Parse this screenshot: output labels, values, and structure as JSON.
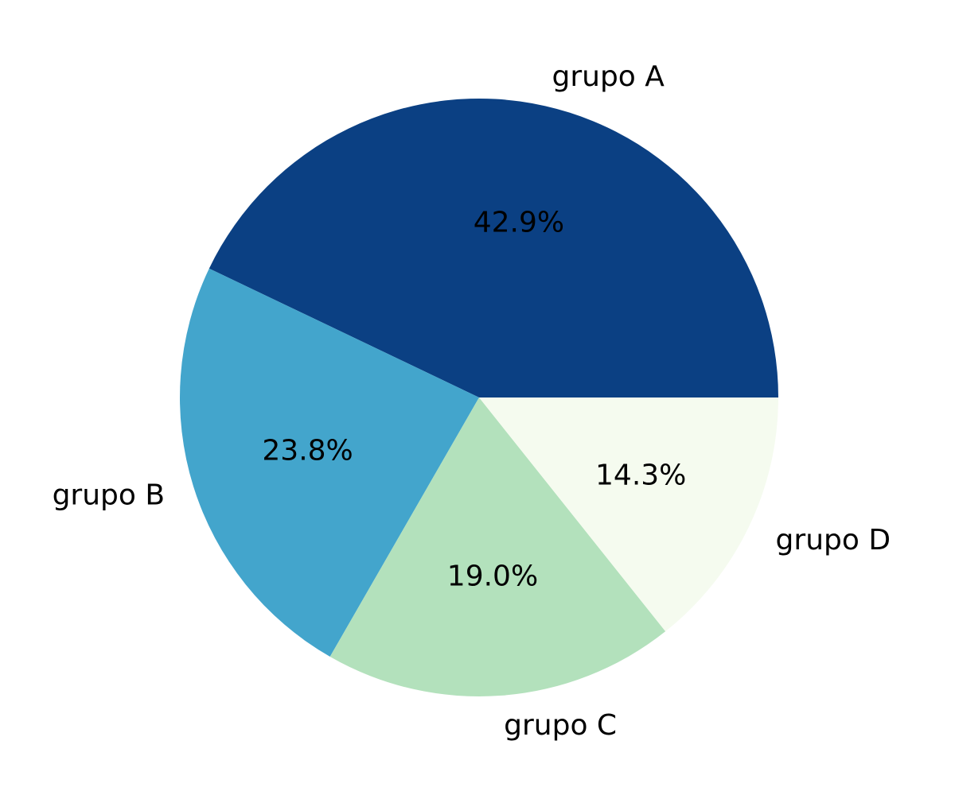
{
  "chart_data": {
    "type": "pie",
    "categories": [
      "grupo A",
      "grupo B",
      "grupo C",
      "grupo D"
    ],
    "values": [
      42.9,
      23.8,
      19.0,
      14.3
    ],
    "value_labels": [
      "42.9%",
      "23.8%",
      "19.0%",
      "14.3%"
    ],
    "colors": [
      "#0b4083",
      "#43a5cc",
      "#b3e1bc",
      "#f5fbef"
    ],
    "start_angle_deg": 0,
    "direction": "counterclockwise",
    "legend": "none"
  }
}
